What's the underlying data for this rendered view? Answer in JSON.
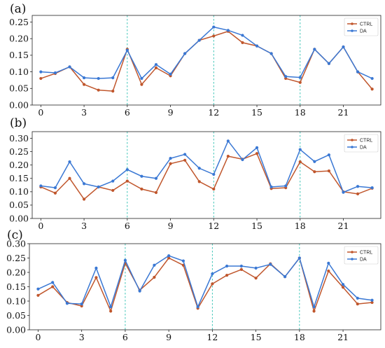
{
  "chart_data": [
    {
      "panel": "(a)",
      "type": "line",
      "x": [
        0,
        1,
        2,
        3,
        4,
        5,
        6,
        7,
        8,
        9,
        10,
        11,
        12,
        13,
        14,
        15,
        16,
        17,
        18,
        19,
        20,
        21,
        22,
        23
      ],
      "xticks": [
        0,
        3,
        6,
        9,
        12,
        15,
        18,
        21
      ],
      "xtick_labels": [
        "0",
        "3",
        "6",
        "9",
        "12",
        "15",
        "18",
        "21"
      ],
      "yticks": [
        0.0,
        0.05,
        0.1,
        0.15,
        0.2,
        0.25
      ],
      "ytick_labels": [
        "0.00",
        "0.05",
        "0.10",
        "0.15",
        "0.20",
        "0.25"
      ],
      "xlim": [
        -0.6,
        23.6
      ],
      "ylim": [
        0.0,
        0.27
      ],
      "vlines": [
        6,
        12,
        18
      ],
      "legend": "top-right",
      "series": [
        {
          "name": "CTRL",
          "color": "#c0562c",
          "values": [
            0.08,
            0.095,
            0.115,
            0.062,
            0.045,
            0.042,
            0.168,
            0.062,
            0.112,
            0.088,
            0.155,
            0.195,
            0.208,
            0.222,
            0.188,
            0.178,
            0.155,
            0.08,
            0.068,
            0.168,
            0.125,
            0.175,
            0.1,
            0.048
          ]
        },
        {
          "name": "DA",
          "color": "#3a78d4",
          "values": [
            0.1,
            0.097,
            0.115,
            0.082,
            0.08,
            0.082,
            0.165,
            0.08,
            0.122,
            0.093,
            0.155,
            0.195,
            0.235,
            0.225,
            0.21,
            0.178,
            0.155,
            0.086,
            0.083,
            0.168,
            0.125,
            0.175,
            0.1,
            0.08
          ]
        }
      ]
    },
    {
      "panel": "(b)",
      "type": "line",
      "x": [
        0,
        1,
        2,
        3,
        4,
        5,
        6,
        7,
        8,
        9,
        10,
        11,
        12,
        13,
        14,
        15,
        16,
        17,
        18,
        19,
        20,
        21,
        22,
        23
      ],
      "xticks": [
        0,
        3,
        6,
        9,
        12,
        15,
        18,
        21
      ],
      "xtick_labels": [
        "0",
        "3",
        "6",
        "9",
        "12",
        "15",
        "18",
        "21"
      ],
      "yticks": [
        0.0,
        0.05,
        0.1,
        0.15,
        0.2,
        0.25,
        0.3
      ],
      "ytick_labels": [
        "0.00",
        "0.05",
        "0.10",
        "0.15",
        "0.20",
        "0.25",
        "0.30"
      ],
      "xlim": [
        -0.6,
        23.6
      ],
      "ylim": [
        0.0,
        0.325
      ],
      "vlines": [
        6,
        12,
        18
      ],
      "legend": "top-right",
      "series": [
        {
          "name": "CTRL",
          "color": "#c0562c",
          "values": [
            0.118,
            0.095,
            0.15,
            0.072,
            0.118,
            0.105,
            0.14,
            0.11,
            0.097,
            0.205,
            0.218,
            0.138,
            0.11,
            0.233,
            0.222,
            0.243,
            0.112,
            0.115,
            0.212,
            0.175,
            0.178,
            0.1,
            0.092,
            0.113
          ]
        },
        {
          "name": "DA",
          "color": "#3a78d4",
          "values": [
            0.122,
            0.115,
            0.212,
            0.13,
            0.118,
            0.14,
            0.183,
            0.158,
            0.15,
            0.225,
            0.24,
            0.188,
            0.165,
            0.29,
            0.22,
            0.265,
            0.118,
            0.122,
            0.258,
            0.213,
            0.238,
            0.098,
            0.12,
            0.115
          ]
        }
      ]
    },
    {
      "panel": "(c)",
      "type": "line",
      "x": [
        0,
        1,
        2,
        3,
        4,
        5,
        6,
        7,
        8,
        9,
        10,
        11,
        12,
        13,
        14,
        15,
        16,
        17,
        18,
        19,
        20,
        21,
        22,
        23
      ],
      "xticks": [
        0,
        3,
        6,
        9,
        12,
        15,
        18,
        21
      ],
      "xtick_labels": [
        "0",
        "3",
        "6",
        "9",
        "12",
        "15",
        "18",
        "21"
      ],
      "yticks": [
        0.0,
        0.05,
        0.1,
        0.15,
        0.2,
        0.25,
        0.3
      ],
      "ytick_labels": [
        "0.00",
        "0.05",
        "0.10",
        "0.15",
        "0.20",
        "0.25",
        "0.30"
      ],
      "xlim": [
        -0.6,
        23.6
      ],
      "ylim": [
        0.0,
        0.3
      ],
      "vlines": [
        6,
        12,
        18
      ],
      "legend": "top-right",
      "series": [
        {
          "name": "CTRL",
          "color": "#c0562c",
          "values": [
            0.12,
            0.15,
            0.095,
            0.083,
            0.182,
            0.065,
            0.232,
            0.138,
            0.183,
            0.25,
            0.225,
            0.075,
            0.16,
            0.19,
            0.21,
            0.18,
            0.23,
            0.185,
            0.25,
            0.065,
            0.205,
            0.148,
            0.09,
            0.095
          ]
        },
        {
          "name": "DA",
          "color": "#3a78d4",
          "values": [
            0.142,
            0.165,
            0.092,
            0.09,
            0.215,
            0.08,
            0.242,
            0.135,
            0.225,
            0.258,
            0.24,
            0.08,
            0.195,
            0.222,
            0.222,
            0.215,
            0.228,
            0.185,
            0.25,
            0.08,
            0.232,
            0.158,
            0.11,
            0.103
          ]
        }
      ]
    }
  ]
}
